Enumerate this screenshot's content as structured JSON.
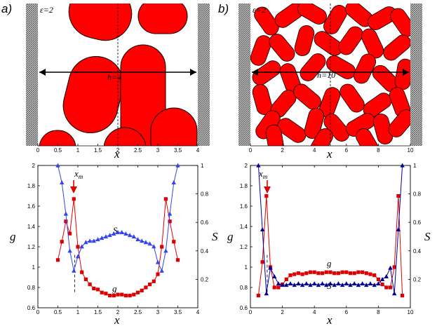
{
  "panels": {
    "a_label": "a)",
    "b_label": "b)"
  },
  "snapshots": {
    "a": {
      "eps": "ε=2",
      "h_label": "h=4",
      "xlabel": "x",
      "xticks": [
        "0",
        "0.5",
        "1",
        "1.5",
        "2",
        "2.5",
        "3",
        "3.5",
        "4"
      ]
    },
    "b": {
      "eps": "ε=2",
      "h_label": "h=10",
      "xlabel": "x",
      "xticks": [
        "0",
        "2",
        "4",
        "6",
        "8",
        "10"
      ]
    }
  },
  "annotations": {
    "a": {
      "xm": "x",
      "xm_sub": "m",
      "S": "S",
      "g": "g"
    },
    "b": {
      "xm": "x",
      "xm_sub": "m",
      "S": "S",
      "g": "g"
    }
  },
  "colors": {
    "g_series": "#dd0000",
    "S_series_a": "#3344ee",
    "S_series_b": "#000099",
    "particle": "#ff0000",
    "wall": "#777777"
  },
  "chart_data": [
    {
      "type": "line",
      "title": "",
      "xlabel": "x",
      "ylabel": "g",
      "y2label": "S",
      "xlim": [
        0,
        4
      ],
      "ylim": [
        0.6,
        2
      ],
      "y2lim": [
        0,
        1
      ],
      "xticks": [
        0,
        0.5,
        1,
        1.5,
        2,
        2.5,
        3,
        3.5,
        4
      ],
      "yticks": [
        0.6,
        0.8,
        1,
        1.2,
        1.4,
        1.6,
        1.8,
        2
      ],
      "y2ticks": [
        0.2,
        0.4,
        0.6,
        0.8,
        1
      ],
      "xm": 0.92,
      "series": [
        {
          "name": "g",
          "axis": "left",
          "marker": "square",
          "x": [
            0.5,
            0.6,
            0.7,
            0.8,
            0.9,
            1.0,
            1.1,
            1.2,
            1.3,
            1.4,
            1.5,
            1.6,
            1.7,
            1.8,
            1.9,
            2.0,
            2.1,
            2.2,
            2.3,
            2.4,
            2.5,
            2.6,
            2.7,
            2.8,
            2.9,
            3.0,
            3.1,
            3.2,
            3.3,
            3.4,
            3.5
          ],
          "values": [
            1.07,
            1.25,
            1.45,
            1.33,
            1.67,
            1.2,
            0.95,
            0.88,
            0.83,
            0.79,
            0.78,
            0.75,
            0.74,
            0.72,
            0.72,
            0.73,
            0.73,
            0.72,
            0.72,
            0.73,
            0.75,
            0.77,
            0.8,
            0.83,
            0.86,
            0.93,
            1.2,
            1.67,
            1.45,
            1.25,
            1.07
          ]
        },
        {
          "name": "S",
          "axis": "right",
          "marker": "triangle",
          "x": [
            0.5,
            0.6,
            0.7,
            0.8,
            0.9,
            1.0,
            1.1,
            1.2,
            1.3,
            1.4,
            1.5,
            1.6,
            1.7,
            1.8,
            1.9,
            2.0,
            2.1,
            2.2,
            2.3,
            2.4,
            2.5,
            2.6,
            2.7,
            2.8,
            2.9,
            3.0,
            3.1,
            3.2,
            3.3,
            3.4,
            3.5
          ],
          "values": [
            1.0,
            0.88,
            0.66,
            0.4,
            0.26,
            0.36,
            0.43,
            0.46,
            0.47,
            0.47,
            0.48,
            0.49,
            0.5,
            0.51,
            0.52,
            0.53,
            0.53,
            0.52,
            0.51,
            0.5,
            0.48,
            0.47,
            0.46,
            0.45,
            0.43,
            0.32,
            0.26,
            0.4,
            0.66,
            0.88,
            1.0
          ]
        }
      ]
    },
    {
      "type": "line",
      "title": "",
      "xlabel": "x",
      "ylabel": "g",
      "y2label": "S",
      "xlim": [
        0,
        10
      ],
      "ylim": [
        0.6,
        2
      ],
      "y2lim": [
        0,
        1
      ],
      "xticks": [
        0,
        2,
        4,
        6,
        8,
        10
      ],
      "yticks": [
        0.6,
        0.8,
        1,
        1.2,
        1.4,
        1.6,
        1.8,
        2
      ],
      "y2ticks": [
        0.2,
        0.4,
        0.6,
        0.8,
        1
      ],
      "xm": 1.05,
      "series": [
        {
          "name": "g",
          "axis": "left",
          "marker": "square",
          "x": [
            0.5,
            0.75,
            1.0,
            1.25,
            1.5,
            1.75,
            2.0,
            2.25,
            2.5,
            2.75,
            3.0,
            3.25,
            3.5,
            3.75,
            4.0,
            4.25,
            4.5,
            4.75,
            5.0,
            5.25,
            5.5,
            5.75,
            6.0,
            6.25,
            6.5,
            6.75,
            7.0,
            7.25,
            7.5,
            7.75,
            8.0,
            8.25,
            8.5,
            8.75,
            9.0,
            9.25,
            9.5
          ],
          "values": [
            0.72,
            1.05,
            1.7,
            1.0,
            0.8,
            0.8,
            0.83,
            0.88,
            0.92,
            0.93,
            0.94,
            0.93,
            0.94,
            0.95,
            0.95,
            0.94,
            0.94,
            0.95,
            0.95,
            0.94,
            0.94,
            0.95,
            0.95,
            0.94,
            0.94,
            0.95,
            0.95,
            0.94,
            0.93,
            0.92,
            0.88,
            0.83,
            0.8,
            0.8,
            1.0,
            1.7,
            0.72
          ]
        },
        {
          "name": "S",
          "axis": "right",
          "marker": "triangle",
          "x": [
            0.5,
            0.75,
            1.0,
            1.25,
            1.5,
            1.75,
            2.0,
            2.25,
            2.5,
            2.75,
            3.0,
            3.25,
            3.5,
            3.75,
            4.0,
            4.25,
            4.5,
            4.75,
            5.0,
            5.25,
            5.5,
            5.75,
            6.0,
            6.25,
            6.5,
            6.75,
            7.0,
            7.25,
            7.5,
            7.75,
            8.0,
            8.25,
            8.5,
            8.75,
            9.0,
            9.25,
            9.5
          ],
          "values": [
            1.0,
            0.55,
            0.1,
            0.28,
            0.22,
            0.17,
            0.16,
            0.16,
            0.17,
            0.16,
            0.17,
            0.16,
            0.17,
            0.16,
            0.17,
            0.16,
            0.17,
            0.16,
            0.17,
            0.16,
            0.17,
            0.16,
            0.17,
            0.16,
            0.17,
            0.16,
            0.17,
            0.16,
            0.17,
            0.16,
            0.17,
            0.2,
            0.22,
            0.28,
            0.1,
            0.55,
            1.0
          ]
        }
      ]
    }
  ]
}
